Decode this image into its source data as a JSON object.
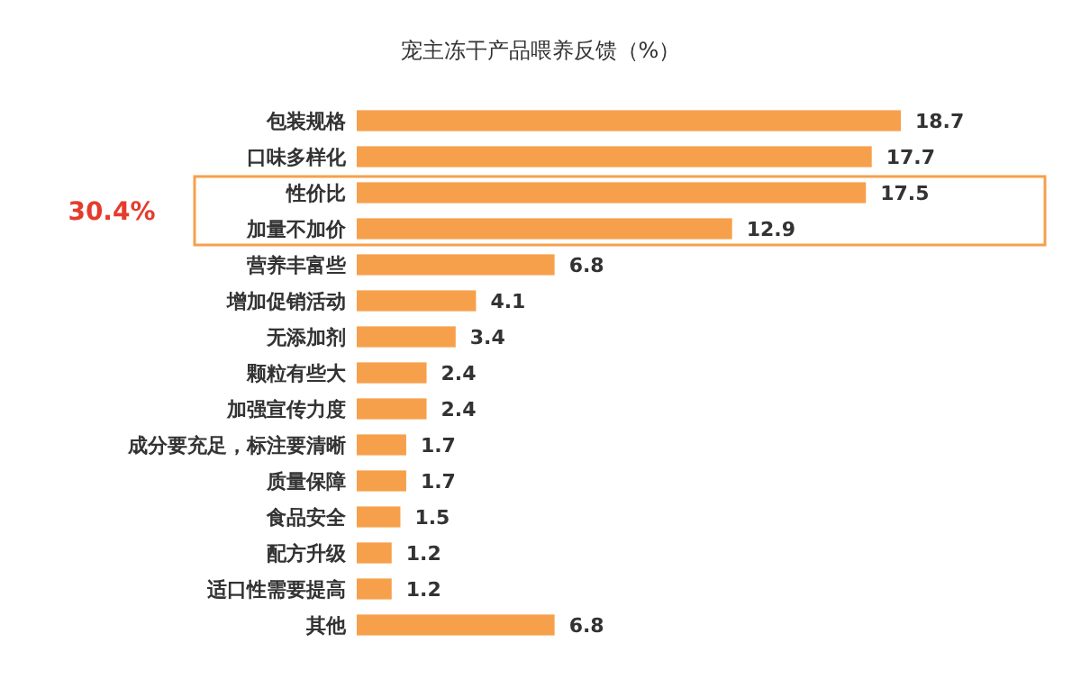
{
  "chart_data": {
    "type": "bar",
    "orientation": "horizontal",
    "title": "宠主冻干产品喂养反馈（%）",
    "categories": [
      "包装规格",
      "口味多样化",
      "性价比",
      "加量不加价",
      "营养丰富些",
      "增加促销活动",
      "无添加剂",
      "颗粒有些大",
      "加强宣传力度",
      "成分要充足，标注要清晰",
      "质量保障",
      "食品安全",
      "配方升级",
      "适口性需要提高",
      "其他"
    ],
    "values": [
      18.7,
      17.7,
      17.5,
      12.9,
      6.8,
      4.1,
      3.4,
      2.4,
      2.4,
      1.7,
      1.7,
      1.5,
      1.2,
      1.2,
      6.8
    ],
    "color": "#f7a04b",
    "data_labels": true,
    "annotations": [
      "30.4%"
    ]
  }
}
